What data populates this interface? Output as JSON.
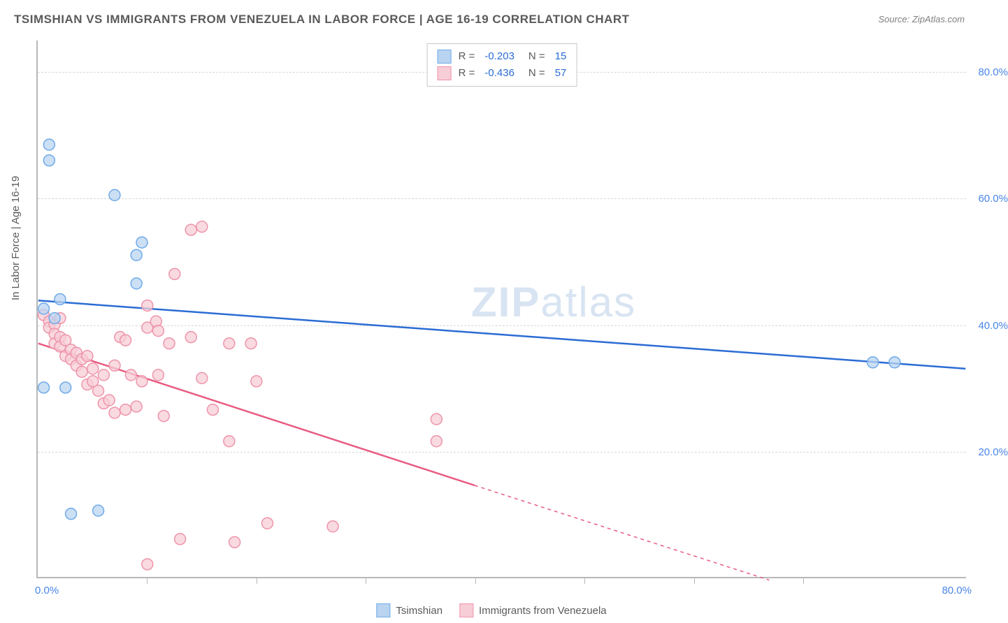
{
  "title": "TSIMSHIAN VS IMMIGRANTS FROM VENEZUELA IN LABOR FORCE | AGE 16-19 CORRELATION CHART",
  "source": "Source: ZipAtlas.com",
  "ylabel": "In Labor Force | Age 16-19",
  "watermark_bold": "ZIP",
  "watermark_light": "atlas",
  "chart": {
    "type": "scatter",
    "background_color": "#ffffff",
    "grid_color": "#d8d8d8",
    "axis_color": "#b8b8b8",
    "label_color": "#5a5a5a",
    "tick_label_color": "#4a86e8",
    "tick_fontsize": 15,
    "label_fontsize": 15,
    "title_fontsize": 17,
    "xlim": [
      0,
      85
    ],
    "ylim": [
      0,
      85
    ],
    "yticks": [
      20,
      40,
      60,
      80
    ],
    "ytick_labels": [
      "20.0%",
      "40.0%",
      "60.0%",
      "80.0%"
    ],
    "xticks": [
      0,
      80
    ],
    "xtick_labels": [
      "0.0%",
      "80.0%"
    ],
    "xtick_minor": [
      10,
      20,
      30,
      40,
      50,
      60,
      70
    ],
    "marker_radius": 8,
    "marker_stroke_width": 1.5,
    "line_width": 2.5,
    "series": [
      {
        "name": "Tsimshian",
        "color_fill": "#b9d4f1",
        "color_stroke": "#6faae8",
        "line_color": "#2b6cd4",
        "R": "-0.203",
        "N": "15",
        "points": [
          [
            1,
            68.5
          ],
          [
            1,
            66
          ],
          [
            2,
            44
          ],
          [
            0.5,
            42.5
          ],
          [
            7,
            60.5
          ],
          [
            9.5,
            53
          ],
          [
            9,
            51
          ],
          [
            9,
            46.5
          ],
          [
            0.5,
            30
          ],
          [
            2.5,
            30
          ],
          [
            3,
            10
          ],
          [
            5.5,
            10.5
          ],
          [
            76.5,
            34
          ],
          [
            78.5,
            34
          ],
          [
            1.5,
            41
          ]
        ],
        "trend": {
          "x1": 0,
          "y1": 43.8,
          "x2": 85,
          "y2": 33.0
        }
      },
      {
        "name": "Immigrants from Venezuela",
        "color_fill": "#f7cdd7",
        "color_stroke": "#ee94aa",
        "line_color": "#e85c81",
        "R": "-0.436",
        "N": "57",
        "points": [
          [
            0.5,
            41.5
          ],
          [
            1,
            40.5
          ],
          [
            1,
            39.5
          ],
          [
            1.5,
            40
          ],
          [
            1.5,
            38.5
          ],
          [
            2,
            41
          ],
          [
            1.5,
            37
          ],
          [
            2,
            38
          ],
          [
            2,
            36.5
          ],
          [
            2.5,
            37.5
          ],
          [
            2.5,
            35
          ],
          [
            3,
            36
          ],
          [
            3,
            34.5
          ],
          [
            3.5,
            35.5
          ],
          [
            3.5,
            33.5
          ],
          [
            4,
            34.5
          ],
          [
            4,
            32.5
          ],
          [
            4.5,
            35
          ],
          [
            4.5,
            30.5
          ],
          [
            5,
            33
          ],
          [
            5,
            31
          ],
          [
            5.5,
            29.5
          ],
          [
            6,
            32
          ],
          [
            6,
            27.5
          ],
          [
            6.5,
            28
          ],
          [
            7,
            33.5
          ],
          [
            7,
            26
          ],
          [
            7.5,
            38
          ],
          [
            8,
            37.5
          ],
          [
            8,
            26.5
          ],
          [
            8.5,
            32
          ],
          [
            9,
            27
          ],
          [
            9.5,
            31
          ],
          [
            10,
            43
          ],
          [
            10,
            39.5
          ],
          [
            10.8,
            40.5
          ],
          [
            11,
            39
          ],
          [
            11,
            32
          ],
          [
            11.5,
            25.5
          ],
          [
            12,
            37
          ],
          [
            10,
            2
          ],
          [
            12.5,
            48
          ],
          [
            14,
            38
          ],
          [
            14,
            55
          ],
          [
            15,
            55.5
          ],
          [
            15,
            31.5
          ],
          [
            17.5,
            37
          ],
          [
            17.5,
            21.5
          ],
          [
            18,
            5.5
          ],
          [
            19.5,
            37
          ],
          [
            20,
            31
          ],
          [
            21,
            8.5
          ],
          [
            27,
            8
          ],
          [
            36.5,
            25
          ],
          [
            36.5,
            21.5
          ],
          [
            13,
            6
          ],
          [
            16,
            26.5
          ]
        ],
        "trend": {
          "x1": 0,
          "y1": 37.0,
          "x2": 40,
          "y2": 14.5,
          "x2_ext": 67,
          "y2_ext": -0.5
        }
      }
    ]
  },
  "legend_top": [
    {
      "swatch_fill": "#b9d4f1",
      "swatch_stroke": "#6faae8",
      "R_label": "R =",
      "R": "-0.203",
      "N_label": "N =",
      "N": "15"
    },
    {
      "swatch_fill": "#f7cdd7",
      "swatch_stroke": "#ee94aa",
      "R_label": "R =",
      "R": "-0.436",
      "N_label": "N =",
      "N": "57"
    }
  ],
  "legend_bottom": [
    {
      "swatch_fill": "#b9d4f1",
      "swatch_stroke": "#6faae8",
      "label": "Tsimshian"
    },
    {
      "swatch_fill": "#f7cdd7",
      "swatch_stroke": "#ee94aa",
      "label": "Immigrants from Venezuela"
    }
  ]
}
